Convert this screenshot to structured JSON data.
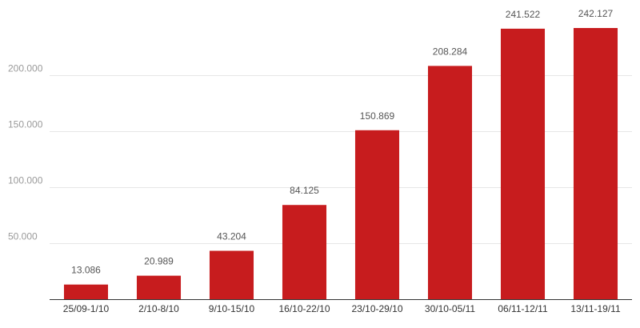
{
  "chart_data": {
    "type": "bar",
    "categories": [
      "25/09-1/10",
      "2/10-8/10",
      "9/10-15/10",
      "16/10-22/10",
      "23/10-29/10",
      "30/10-05/11",
      "06/11-12/11",
      "13/11-19/11"
    ],
    "values": [
      13086,
      20989,
      43204,
      84125,
      150869,
      208284,
      241522,
      242127
    ],
    "data_labels": [
      "13.086",
      "20.989",
      "43.204",
      "84.125",
      "150.869",
      "208.284",
      "241.522",
      "242.127"
    ],
    "yticks": [
      50000,
      100000,
      150000,
      200000
    ],
    "ytick_labels": [
      "50.000",
      "100.000",
      "150.000",
      "200.000"
    ],
    "ylim": [
      0,
      250000
    ],
    "grid": true,
    "legend": "none",
    "colors": {
      "bar": "#c71c1e"
    }
  }
}
